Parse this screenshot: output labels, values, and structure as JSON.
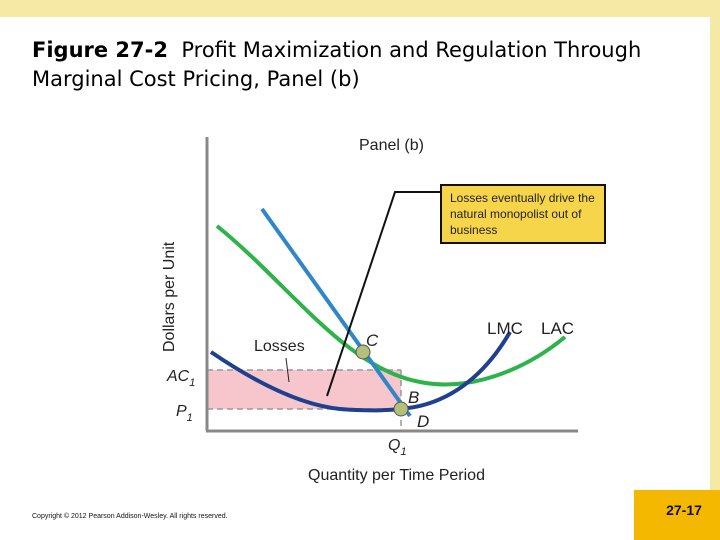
{
  "slide": {
    "title_lead": "Figure 27-2",
    "title_rest": "Profit Maximization and Regulation Through Marginal Cost Pricing, Panel (b)",
    "copyright": "Copyright © 2012 Pearson Addison-Wesley. All rights reserved.",
    "page_number": "27-17"
  },
  "diagram": {
    "panel_label": "Panel (b)",
    "y_axis_label": "Dollars per Unit",
    "x_axis_label": "Quantity per Time Period",
    "curve_labels": {
      "lmc": "LMC",
      "lac": "LAC"
    },
    "point_labels": {
      "c": "C",
      "b": "B",
      "d": "D"
    },
    "losses_label": "Losses",
    "callout_text": "Losses eventually drive the natural monopolist out of business",
    "price_labels": {
      "ac1": {
        "base": "AC",
        "sub": "1"
      },
      "p1": {
        "base": "P",
        "sub": "1"
      },
      "q1": {
        "base": "Q",
        "sub": "1"
      }
    },
    "colors": {
      "lac": "#2db34a",
      "lmc": "#1f3f8f",
      "demand": "#2f86c8",
      "losses_fill": "#f6c6cc",
      "point_fill": "#b3bf7a",
      "callout_bg": "#f7d54a",
      "frame": "#f5e9a5",
      "page_badge": "#f5b800"
    }
  }
}
